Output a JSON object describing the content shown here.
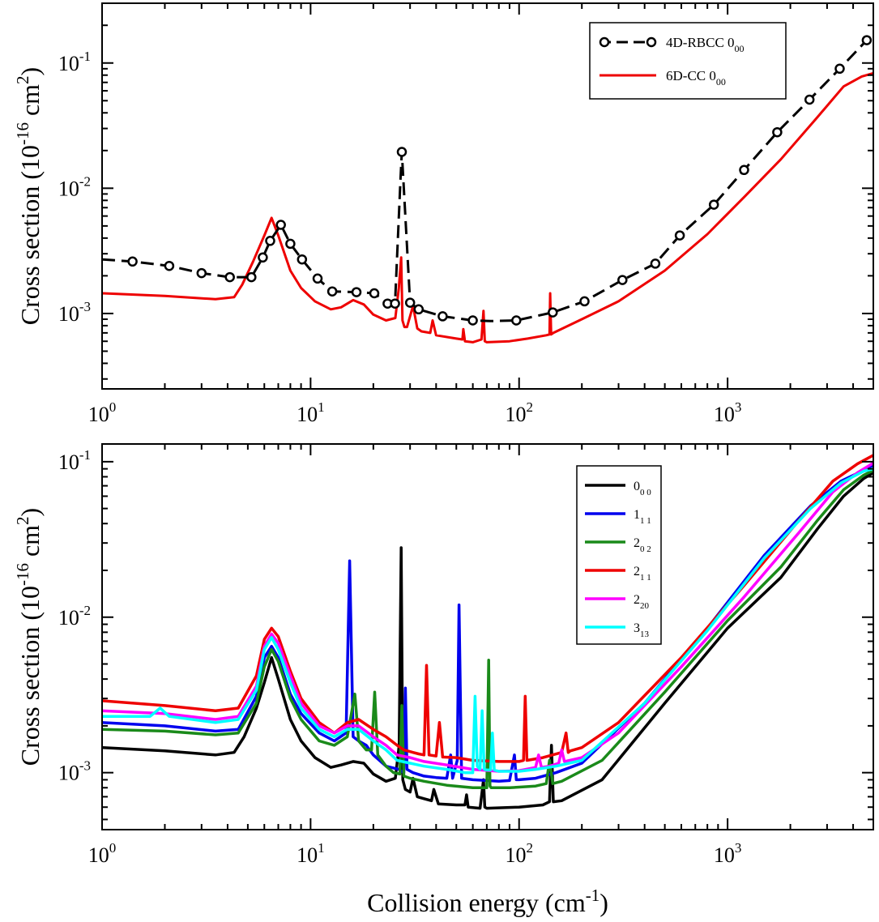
{
  "colors": {
    "black": "#000000",
    "red": "#ee0000",
    "blue": "#0000ee",
    "green": "#1a8a1a",
    "magenta": "#ff00ff",
    "cyan": "#00ffff"
  },
  "xlabel": {
    "base": "Collision energy (cm",
    "sup": "-1",
    "tail": ")"
  },
  "ylabel": {
    "base": "Cross section (10",
    "sup1": "-16",
    "mid": " cm",
    "sup2": "2",
    "tail": ")"
  },
  "chart_data": [
    {
      "type": "line",
      "xscale": "log",
      "yscale": "log",
      "xlim": [
        1,
        5000
      ],
      "ylim": [
        0.00025,
        0.3
      ],
      "xticks": [
        {
          "value": 1,
          "base": "10",
          "exp": "0"
        },
        {
          "value": 10,
          "base": "10",
          "exp": "1"
        },
        {
          "value": 100,
          "base": "10",
          "exp": "2"
        },
        {
          "value": 1000,
          "base": "10",
          "exp": "3"
        }
      ],
      "yticks": [
        {
          "value": 0.001,
          "base": "10",
          "exp": "-3"
        },
        {
          "value": 0.01,
          "base": "10",
          "exp": "-2"
        },
        {
          "value": 0.1,
          "base": "10",
          "exp": "-1"
        }
      ],
      "legend_position": "top-right",
      "series": [
        {
          "name": "4D-RBCC 0",
          "sub": "00",
          "color": "#000000",
          "dashed": true,
          "markers": "circle",
          "x": [
            1,
            1.4,
            2.1,
            3.0,
            4.1,
            5.2,
            5.9,
            6.4,
            7.2,
            8.0,
            9.1,
            10.8,
            12.7,
            16.6,
            20.2,
            23.4,
            25.4,
            27.0,
            27.4,
            30.0,
            33.0,
            43.0,
            60.0,
            73.0,
            97.0,
            145.0,
            206.0,
            313.0,
            450.0,
            590.0,
            860.0,
            1200.0,
            1730.0,
            2470.0,
            3450.0,
            4650.0
          ],
          "y": [
            0.0027,
            0.0026,
            0.0024,
            0.0021,
            0.00195,
            0.00195,
            0.0028,
            0.0038,
            0.0051,
            0.0036,
            0.0027,
            0.0019,
            0.0015,
            0.00148,
            0.00145,
            0.0012,
            0.0012,
            0.012,
            0.0195,
            0.00122,
            0.00108,
            0.00095,
            0.00088,
            0.00087,
            0.00088,
            0.00102,
            0.00125,
            0.00185,
            0.0025,
            0.0042,
            0.0074,
            0.014,
            0.028,
            0.051,
            0.09,
            0.152
          ],
          "marker_idx": [
            1,
            2,
            3,
            4,
            5,
            6,
            7,
            8,
            9,
            10,
            11,
            12,
            13,
            14,
            15,
            16,
            18,
            19,
            20,
            21,
            22,
            24,
            25,
            26,
            27,
            28,
            29,
            30,
            31,
            32,
            33,
            34,
            35
          ]
        },
        {
          "name": "6D-CC 0",
          "sub": "00",
          "color": "#ee0000",
          "dashed": false,
          "x": [
            1,
            2,
            3.5,
            4.3,
            4.7,
            5.3,
            6.0,
            6.5,
            7.0,
            8.0,
            9.0,
            10.5,
            12.5,
            14.0,
            16.0,
            18.0,
            20.0,
            23.0,
            25.5,
            26.5,
            27.2,
            27.6,
            28.2,
            29.0,
            31.0,
            32.5,
            34.0,
            37.5,
            38.5,
            40.0,
            50.0,
            53.5,
            54.0,
            55.0,
            60.0,
            66.0,
            67.5,
            68.5,
            70.0,
            90.0,
            110.0,
            135.0,
            140.0,
            141.0,
            142.5,
            146.0,
            200.0,
            300.0,
            500.0,
            800.0,
            1200.0,
            1800.0,
            2700.0,
            3600.0,
            4400.0,
            5000.0
          ],
          "y": [
            0.00145,
            0.00138,
            0.0013,
            0.00135,
            0.0017,
            0.0026,
            0.0042,
            0.0058,
            0.0042,
            0.0022,
            0.0016,
            0.00125,
            0.00108,
            0.00112,
            0.00128,
            0.00118,
            0.00098,
            0.00088,
            0.00092,
            0.0016,
            0.0028,
            0.00088,
            0.00078,
            0.00078,
            0.00115,
            0.00076,
            0.00072,
            0.0007,
            0.00088,
            0.00067,
            0.00063,
            0.00062,
            0.00075,
            0.0006,
            0.00059,
            0.00062,
            0.00105,
            0.0006,
            0.00059,
            0.0006,
            0.00063,
            0.00067,
            0.00068,
            0.00145,
            0.00068,
            0.0007,
            0.0009,
            0.00125,
            0.0022,
            0.0043,
            0.0085,
            0.017,
            0.037,
            0.065,
            0.078,
            0.083
          ]
        }
      ]
    },
    {
      "type": "line",
      "xscale": "log",
      "yscale": "log",
      "xlim": [
        1,
        5000
      ],
      "ylim": [
        0.00043,
        0.13
      ],
      "xticks": [
        {
          "value": 1,
          "base": "10",
          "exp": "0"
        },
        {
          "value": 10,
          "base": "10",
          "exp": "1"
        },
        {
          "value": 100,
          "base": "10",
          "exp": "2"
        },
        {
          "value": 1000,
          "base": "10",
          "exp": "3"
        }
      ],
      "yticks": [
        {
          "value": 0.001,
          "base": "10",
          "exp": "-3"
        },
        {
          "value": 0.01,
          "base": "10",
          "exp": "-2"
        },
        {
          "value": 0.1,
          "base": "10",
          "exp": "-1"
        }
      ],
      "legend_position": "top-right",
      "series": [
        {
          "name": "0",
          "sub": "0 0",
          "color": "#000000",
          "x": [
            1,
            2,
            3.5,
            4.3,
            4.8,
            5.5,
            6.0,
            6.5,
            7.0,
            8.0,
            9.0,
            10.5,
            12.5,
            14.0,
            16.0,
            18.0,
            20.0,
            23.0,
            25.5,
            26.6,
            27.2,
            27.7,
            28.5,
            30.0,
            31.0,
            32.5,
            35.0,
            38.0,
            39.0,
            41.0,
            50.0,
            55.0,
            56.0,
            57.0,
            65.0,
            67.5,
            68.5,
            70.0,
            100.0,
            130.0,
            140.0,
            143.0,
            146.0,
            160.0,
            250.0,
            500.0,
            1000.0,
            1800.0,
            2700.0,
            3600.0,
            4500.0,
            5000.0
          ],
          "y": [
            0.00145,
            0.00138,
            0.0013,
            0.00135,
            0.0017,
            0.0026,
            0.0038,
            0.0055,
            0.004,
            0.0022,
            0.0016,
            0.00125,
            0.00108,
            0.00112,
            0.00118,
            0.00115,
            0.00098,
            0.00088,
            0.00092,
            0.0015,
            0.028,
            0.0009,
            0.00078,
            0.00075,
            0.00092,
            0.0007,
            0.00068,
            0.00066,
            0.00078,
            0.00063,
            0.00062,
            0.00062,
            0.00072,
            0.0006,
            0.00059,
            0.0009,
            0.0006,
            0.00059,
            0.0006,
            0.00062,
            0.00065,
            0.0015,
            0.00065,
            0.00066,
            0.0009,
            0.0028,
            0.0085,
            0.018,
            0.037,
            0.06,
            0.078,
            0.085
          ]
        },
        {
          "name": "1",
          "sub": "1 1",
          "color": "#0000ee",
          "x": [
            1,
            2,
            3.5,
            4.5,
            5.5,
            6.0,
            6.5,
            7.0,
            8.0,
            9.0,
            11.0,
            13.0,
            14.8,
            15.4,
            16.0,
            17.0,
            18.5,
            20.0,
            23.0,
            26.5,
            28.0,
            28.5,
            29.0,
            31.0,
            35.0,
            40.0,
            45.0,
            47.0,
            48.0,
            50.5,
            51.5,
            53.0,
            60.0,
            70.0,
            80.0,
            90.0,
            95.0,
            97.0,
            100.0,
            120.0,
            150.0,
            200.0,
            400.0,
            800.0,
            1500.0,
            2500.0,
            3500.0,
            4500.0,
            5000.0
          ],
          "y": [
            0.0021,
            0.002,
            0.00185,
            0.0019,
            0.0031,
            0.0055,
            0.0065,
            0.0055,
            0.0032,
            0.0024,
            0.0018,
            0.0016,
            0.0018,
            0.023,
            0.0017,
            0.0016,
            0.0015,
            0.0013,
            0.0011,
            0.00105,
            0.001,
            0.0035,
            0.00105,
            0.001,
            0.00095,
            0.00093,
            0.00092,
            0.0013,
            0.00092,
            0.0012,
            0.012,
            0.00092,
            0.0009,
            0.00089,
            0.00088,
            0.00089,
            0.0013,
            0.0009,
            0.0009,
            0.00092,
            0.001,
            0.00115,
            0.0028,
            0.0085,
            0.025,
            0.052,
            0.075,
            0.088,
            0.095
          ]
        },
        {
          "name": "2",
          "sub": "0 2",
          "color": "#1a8a1a",
          "x": [
            1,
            2,
            3.5,
            4.5,
            5.5,
            6.0,
            6.5,
            7.0,
            8.0,
            9.0,
            11.0,
            13.0,
            15.0,
            16.3,
            17.0,
            18.5,
            19.6,
            20.3,
            21.0,
            23.0,
            25.0,
            26.8,
            27.4,
            28.0,
            30.0,
            35.0,
            45.0,
            60.0,
            70.0,
            71.5,
            72.5,
            73.5,
            78.0,
            90.0,
            120.0,
            135.0,
            140.0,
            145.0,
            160.0,
            250.0,
            500.0,
            1000.0,
            1800.0,
            2700.0,
            3600.0,
            4500.0,
            5000.0
          ],
          "y": [
            0.0019,
            0.00185,
            0.00175,
            0.0018,
            0.0028,
            0.0048,
            0.0062,
            0.0052,
            0.003,
            0.0022,
            0.0016,
            0.0015,
            0.0017,
            0.0032,
            0.0016,
            0.0014,
            0.0014,
            0.0033,
            0.0013,
            0.0011,
            0.001,
            0.00098,
            0.0027,
            0.00095,
            0.00092,
            0.00088,
            0.00083,
            0.0008,
            0.0008,
            0.0053,
            0.00082,
            0.0008,
            0.0008,
            0.0008,
            0.00082,
            0.00085,
            0.0012,
            0.00085,
            0.00088,
            0.0012,
            0.0033,
            0.0095,
            0.021,
            0.042,
            0.066,
            0.082,
            0.088
          ]
        },
        {
          "name": "2",
          "sub": "1 1",
          "color": "#ee0000",
          "x": [
            1,
            2,
            3.5,
            4.5,
            5.5,
            6.0,
            6.5,
            7.0,
            8.0,
            9.0,
            11.0,
            13.0,
            15.0,
            17.0,
            20.0,
            23.0,
            26.0,
            28.0,
            31.0,
            33.0,
            35.0,
            36.0,
            37.0,
            40.0,
            41.5,
            43.0,
            50.0,
            60.0,
            80.0,
            100.0,
            105.0,
            107.0,
            109.0,
            130.0,
            160.0,
            168.0,
            172.0,
            176.0,
            200.0,
            300.0,
            600.0,
            1200.0,
            2200.0,
            3200.0,
            4200.0,
            5000.0
          ],
          "y": [
            0.0029,
            0.0027,
            0.0025,
            0.0026,
            0.0042,
            0.0072,
            0.0085,
            0.0075,
            0.0045,
            0.003,
            0.0021,
            0.0018,
            0.0021,
            0.0022,
            0.0019,
            0.0017,
            0.0015,
            0.0014,
            0.00135,
            0.00132,
            0.0013,
            0.0049,
            0.0013,
            0.00128,
            0.0021,
            0.00126,
            0.00125,
            0.0012,
            0.00118,
            0.00118,
            0.0012,
            0.0031,
            0.0012,
            0.00125,
            0.00135,
            0.0018,
            0.00135,
            0.00138,
            0.00145,
            0.0021,
            0.0055,
            0.016,
            0.042,
            0.075,
            0.097,
            0.11
          ]
        },
        {
          "name": "2",
          "sub": "20",
          "color": "#ff00ff",
          "x": [
            1,
            2,
            3.5,
            4.5,
            5.5,
            6.0,
            6.5,
            7.0,
            8.0,
            9.0,
            11.0,
            13.0,
            15.0,
            17.0,
            20.0,
            23.0,
            26.0,
            30.0,
            35.0,
            45.0,
            60.0,
            80.0,
            100.0,
            120.0,
            124.0,
            128.0,
            140.0,
            155.0,
            160.0,
            165.0,
            200.0,
            300.0,
            600.0,
            1200.0,
            2200.0,
            3200.0,
            4200.0,
            5000.0
          ],
          "y": [
            0.0025,
            0.0024,
            0.0022,
            0.0023,
            0.0036,
            0.0065,
            0.0078,
            0.0068,
            0.0042,
            0.0028,
            0.002,
            0.0018,
            0.002,
            0.002,
            0.0017,
            0.0015,
            0.0013,
            0.00125,
            0.00118,
            0.00112,
            0.00105,
            0.00102,
            0.00103,
            0.00108,
            0.0013,
            0.00108,
            0.0011,
            0.00115,
            0.0014,
            0.00118,
            0.00125,
            0.0018,
            0.0048,
            0.0135,
            0.035,
            0.064,
            0.085,
            0.098
          ]
        },
        {
          "name": "3",
          "sub": "13",
          "color": "#00ffff",
          "x": [
            1,
            1.7,
            1.9,
            2.1,
            3.5,
            4.5,
            5.5,
            6.0,
            6.5,
            7.0,
            8.0,
            9.0,
            11.0,
            13.0,
            15.0,
            17.0,
            20.0,
            23.0,
            26.0,
            30.0,
            35.0,
            45.0,
            55.0,
            60.0,
            61.5,
            63.0,
            65.0,
            66.5,
            68.0,
            70.0,
            73.0,
            74.5,
            76.0,
            80.0,
            90.0,
            100.0,
            120.0,
            150.0,
            200.0,
            400.0,
            800.0,
            1500.0,
            2500.0,
            3500.0,
            4500.0,
            5000.0
          ],
          "y": [
            0.0023,
            0.0023,
            0.0026,
            0.0023,
            0.0021,
            0.0022,
            0.0034,
            0.0062,
            0.0074,
            0.0062,
            0.0038,
            0.0026,
            0.0019,
            0.0017,
            0.0019,
            0.0019,
            0.0016,
            0.0014,
            0.0012,
            0.00115,
            0.0011,
            0.00105,
            0.001,
            0.001,
            0.0031,
            0.0011,
            0.00105,
            0.0025,
            0.00105,
            0.00104,
            0.00104,
            0.0018,
            0.00104,
            0.00102,
            0.00102,
            0.00102,
            0.00105,
            0.0011,
            0.0012,
            0.0028,
            0.0082,
            0.024,
            0.05,
            0.073,
            0.087,
            0.09
          ]
        }
      ]
    }
  ]
}
